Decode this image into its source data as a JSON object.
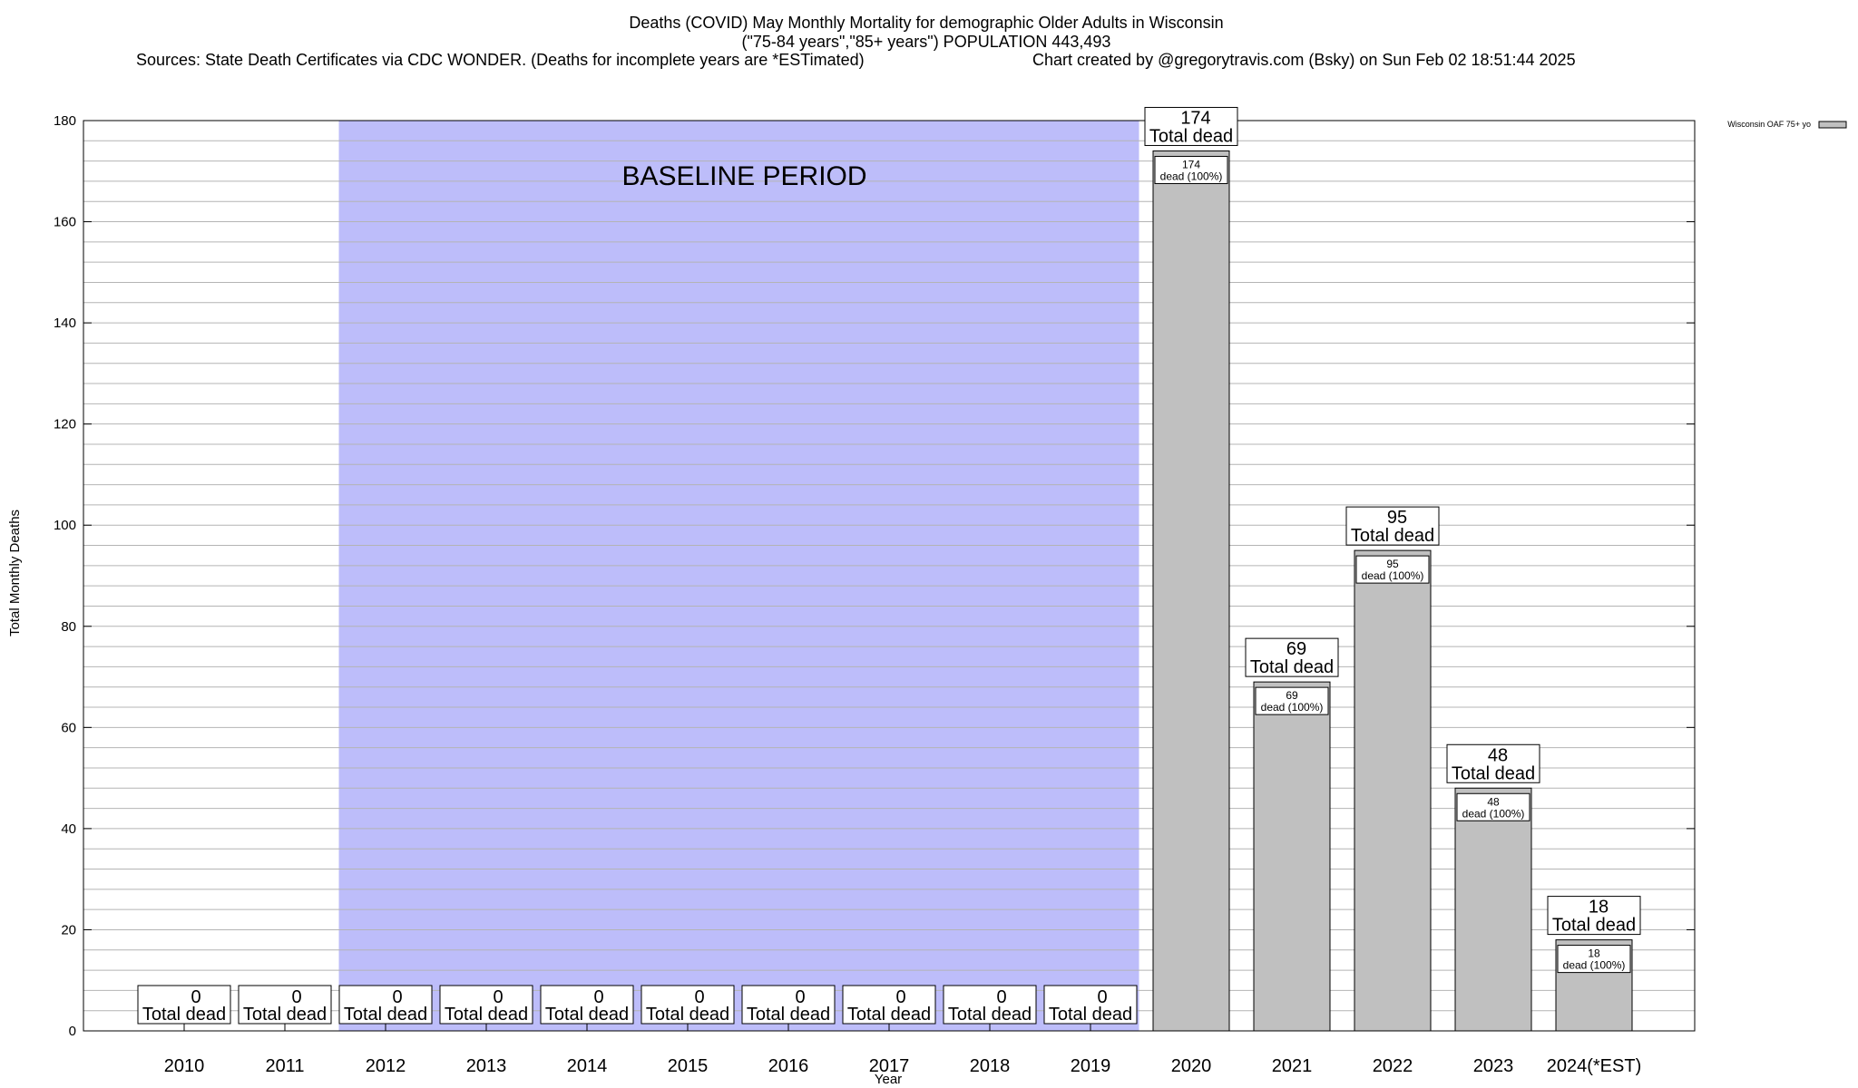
{
  "header": {
    "title_line1": "Deaths (COVID) May Monthly Mortality for demographic Older Adults in Wisconsin",
    "title_line2": "(\"75-84 years\",\"85+ years\") POPULATION 443,493",
    "sources": "Sources: State Death Certificates via CDC WONDER. (Deaths for incomplete years are *ESTimated)",
    "credit": "Chart created by @gregorytravis.com (Bsky) on Sun Feb 02 18:51:44 2025"
  },
  "chart_data": {
    "type": "bar",
    "xlabel": "Year",
    "ylabel": "Total Monthly Deaths",
    "ylim": [
      0,
      180
    ],
    "yticks": [
      0,
      20,
      40,
      60,
      80,
      100,
      120,
      140,
      160,
      180
    ],
    "categories": [
      "2010",
      "2011",
      "2012",
      "2013",
      "2014",
      "2015",
      "2016",
      "2017",
      "2018",
      "2019",
      "2020",
      "2021",
      "2022",
      "2023",
      "2024(*EST)"
    ],
    "series": [
      {
        "name": "Wisconsin OAF 75+ yo",
        "values": [
          0,
          0,
          0,
          0,
          0,
          0,
          0,
          0,
          0,
          0,
          174,
          69,
          95,
          48,
          18
        ]
      }
    ],
    "total_label_suffix": "Total dead",
    "inner_label_suffix": "dead (100%)",
    "baseline": {
      "label": "BASELINE PERIOD",
      "start": "2012",
      "end": "2019",
      "color": "#bdbdfa"
    },
    "bar_color": "#c0c0c0",
    "grid": true,
    "legend_position": "top-right"
  }
}
